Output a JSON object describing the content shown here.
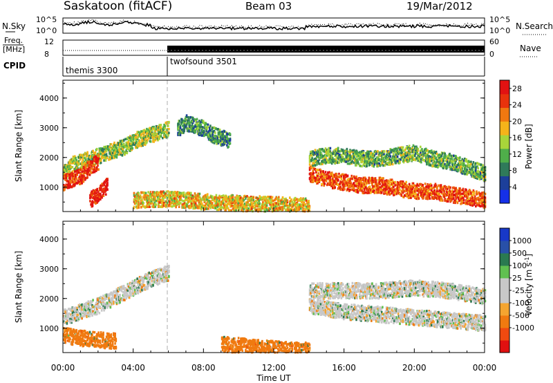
{
  "header": {
    "station": "Saskatoon (fitACF)",
    "beam": "Beam 03",
    "date": "19/Mar/2012"
  },
  "strip": {
    "nsky_label": "N.Sky",
    "nsky_ticks": [
      "10^5",
      "10^0"
    ],
    "nsearch_label": "N.Search",
    "nsearch_ticks": [
      "10^5",
      "10^0"
    ],
    "freq_label": [
      "Freq.",
      "[MHz]"
    ],
    "freq_ticks": [
      "12",
      "8"
    ],
    "nave_label": "Nave",
    "nave_ticks": [
      "60",
      "0"
    ],
    "cpid_label": "CPID",
    "cpid_modes": [
      "themis 3300",
      "twofsound 3501"
    ]
  },
  "colors": {
    "power": [
      "#1530e8",
      "#1c3f9a",
      "#2f7a5a",
      "#4fae4a",
      "#a8d53a",
      "#f5b31a",
      "#f07810",
      "#e8320c",
      "#e11212"
    ],
    "velocity": [
      "#e01010",
      "#f04a10",
      "#f07a10",
      "#f5a530",
      "#c8c8c8",
      "#c8c8c8",
      "#60c050",
      "#2a7a50",
      "#2850a8",
      "#1838c8"
    ]
  },
  "chart_data": [
    {
      "type": "heatmap",
      "panel": "power",
      "title": "",
      "xlabel": "Time UT",
      "ylabel": "Slant Range [km]",
      "x_ticks": [
        "00:00",
        "04:00",
        "08:00",
        "12:00",
        "16:00",
        "20:00",
        "00:00"
      ],
      "xlim_hours": [
        0,
        24
      ],
      "y_ticks": [
        1000,
        2000,
        3000,
        4000
      ],
      "ylim": [
        180,
        4600
      ],
      "colorbar_label": "Power [dB]",
      "colorbar_ticks": [
        4,
        8,
        12,
        16,
        20,
        24,
        28
      ],
      "colorbar_range": [
        0,
        30
      ],
      "series": [
        {
          "hours": [
            0.0,
            0.5,
            1.0,
            1.5,
            2.0,
            2.5,
            3.0,
            3.5,
            4.0,
            4.5,
            5.0,
            5.5,
            6.0
          ],
          "range_km": [
            1500,
            1800,
            1900,
            2000,
            2100,
            2200,
            2300,
            2400,
            2600,
            2700,
            2800,
            2900,
            3000
          ],
          "power_db": 14
        },
        {
          "hours": [
            0.0,
            0.5,
            1.0,
            1.5,
            2.0
          ],
          "range_km": [
            1200,
            1300,
            1400,
            1700,
            1900
          ],
          "power_db": 26
        },
        {
          "hours": [
            1.5,
            2.0,
            2.5
          ],
          "range_km": [
            600,
            800,
            1100
          ],
          "power_db": 28
        },
        {
          "hours": [
            4.0,
            6.0,
            8.0,
            10.0,
            12.0,
            14.0
          ],
          "range_km": [
            600,
            650,
            550,
            500,
            450,
            400
          ],
          "power_db": 18
        },
        {
          "hours": [
            6.5,
            7.0,
            7.5,
            8.0,
            8.5,
            9.0,
            9.5
          ],
          "range_km": [
            3000,
            3200,
            3100,
            3000,
            2800,
            2700,
            2600
          ],
          "power_db": 10
        },
        {
          "hours": [
            14.0,
            15.0,
            16.0,
            17.0,
            18.0,
            19.0,
            20.0,
            21.0,
            22.0,
            23.0,
            24.0
          ],
          "range_km": [
            1500,
            1300,
            1200,
            1100,
            1100,
            1000,
            900,
            900,
            800,
            700,
            600
          ],
          "power_db": 24
        },
        {
          "hours": [
            14.0,
            15.0,
            16.0,
            17.0,
            18.0,
            19.0,
            20.0,
            21.0,
            22.0,
            23.0,
            24.0
          ],
          "range_km": [
            2000,
            2100,
            2100,
            2000,
            2000,
            2100,
            2200,
            2000,
            1900,
            1700,
            1500
          ],
          "power_db": 12
        }
      ]
    },
    {
      "type": "heatmap",
      "panel": "velocity",
      "title": "",
      "xlabel": "Time UT",
      "ylabel": "Slant Range [km]",
      "x_ticks": [
        "00:00",
        "04:00",
        "08:00",
        "12:00",
        "16:00",
        "20:00",
        "00:00"
      ],
      "xlim_hours": [
        0,
        24
      ],
      "y_ticks": [
        1000,
        2000,
        3000,
        4000
      ],
      "ylim": [
        180,
        4600
      ],
      "colorbar_label": "Velocity [m s^-1]",
      "colorbar_ticks": [
        -1000,
        -500,
        -100,
        -25,
        25,
        100,
        500,
        1000
      ],
      "series": [
        {
          "hours": [
            0.0,
            1.0,
            2.0,
            3.0,
            4.0,
            5.0,
            6.0
          ],
          "range_km": [
            1400,
            1600,
            1800,
            2100,
            2400,
            2700,
            2900
          ],
          "velocity_ms": 0
        },
        {
          "hours": [
            0.0,
            1.0,
            2.0,
            3.0
          ],
          "range_km": [
            800,
            700,
            650,
            600
          ],
          "velocity_ms": -200
        },
        {
          "hours": [
            9.0,
            10.0,
            11.0,
            12.0,
            13.0,
            14.0
          ],
          "range_km": [
            500,
            450,
            400,
            350,
            300,
            300
          ],
          "velocity_ms": -200
        },
        {
          "hours": [
            14.0,
            16.0,
            18.0,
            20.0,
            22.0,
            24.0
          ],
          "range_km": [
            1800,
            1600,
            1500,
            1400,
            1300,
            1200
          ],
          "velocity_ms": 0
        },
        {
          "hours": [
            14.0,
            16.0,
            18.0,
            20.0,
            22.0,
            24.0
          ],
          "range_km": [
            2300,
            2300,
            2300,
            2400,
            2300,
            2100
          ],
          "velocity_ms": 0
        }
      ]
    }
  ]
}
